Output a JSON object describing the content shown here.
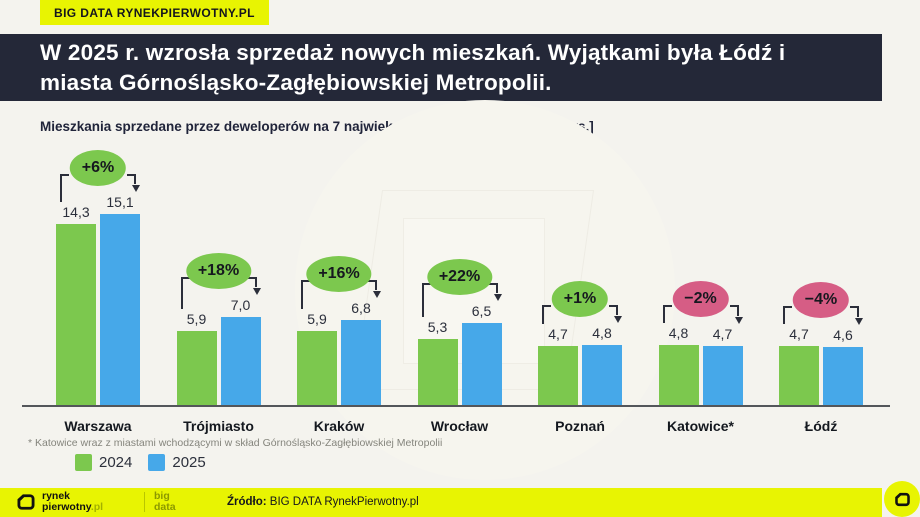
{
  "theme": {
    "background": "#f4f3ee",
    "yellow": "#e8f402",
    "header_bg": "#242838",
    "green": "#7cc84e",
    "blue": "#46a8e9",
    "pink": "#d65d85",
    "text_dark": "#14161d"
  },
  "top_badge": {
    "label": "BIG DATA RYNEKPIERWOTNY.PL"
  },
  "header": {
    "title_line1": "W 2025 r. wzrosła sprzedaż nowych mieszkań. Wyjątkami była Łódź i",
    "title_line2": "miasta Górnośląsko-Zagłębiowskiej Metropolii."
  },
  "chart_data": {
    "type": "bar",
    "title": "Mieszkania sprzedane przez deweloperów na 7 największych rynkach, 2024-2025 [tys.]",
    "categories": [
      "Warszawa",
      "Trójmiasto",
      "Kraków",
      "Wrocław",
      "Poznań",
      "Katowice*",
      "Łódź"
    ],
    "series": [
      {
        "name": "2024",
        "color": "#7cc84e",
        "values": [
          14.3,
          5.9,
          5.9,
          5.3,
          4.7,
          4.8,
          4.7
        ],
        "labels": [
          "14,3",
          "5,9",
          "5,9",
          "5,3",
          "4,7",
          "4,8",
          "4,7"
        ]
      },
      {
        "name": "2025",
        "color": "#46a8e9",
        "values": [
          15.1,
          7.0,
          6.8,
          6.5,
          4.8,
          4.7,
          4.6
        ],
        "labels": [
          "15,1",
          "7,0",
          "6,8",
          "6,5",
          "4,8",
          "4,7",
          "4,6"
        ]
      }
    ],
    "change_badges": [
      {
        "label": "+6%",
        "color": "#7cc84e"
      },
      {
        "label": "+18%",
        "color": "#7cc84e"
      },
      {
        "label": "+16%",
        "color": "#7cc84e"
      },
      {
        "label": "+22%",
        "color": "#7cc84e"
      },
      {
        "label": "+1%",
        "color": "#7cc84e"
      },
      {
        "label": "−2%",
        "color": "#d65d85"
      },
      {
        "label": "−4%",
        "color": "#d65d85"
      }
    ],
    "ylim": [
      0,
      16
    ],
    "grid": false,
    "unit": "tys.",
    "legend_position": "bottom-left"
  },
  "footnote": "* Katowice wraz z miastami wchodzącymi w skład Górnośląsko-Zagłębiowskiej Metropolii",
  "legend": [
    {
      "label": "2024",
      "color": "#7cc84e"
    },
    {
      "label": "2025",
      "color": "#46a8e9"
    }
  ],
  "footer": {
    "logo_line1": "rynek",
    "logo_line2_bold": "pierwotny",
    "logo_line2_suffix": ".pl",
    "bigdata_line1": "big",
    "bigdata_line2": "data",
    "source_label": "Źródło:",
    "source_text": " BIG DATA RynekPierwotny.pl"
  }
}
